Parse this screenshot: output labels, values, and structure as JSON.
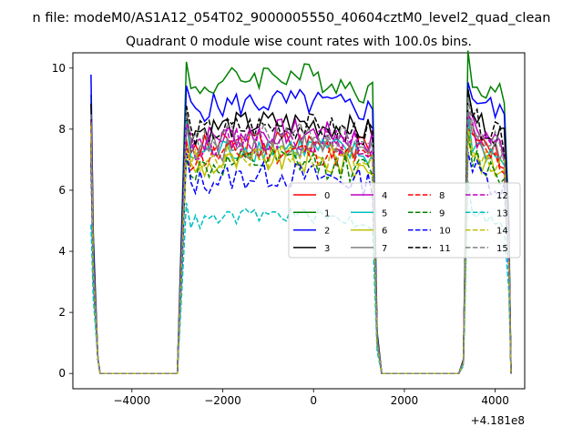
{
  "suptitle": "n file: modeM0/AS1A12_054T02_9000005550_40604cztM0_level2_quad_clean",
  "chart_data": {
    "type": "line",
    "title": "Quadrant 0 module wise count rates with 100.0s bins.",
    "xlabel": "",
    "ylabel": "",
    "x_offset_label": "+4.181e8",
    "xlim": [
      -5300,
      4650
    ],
    "ylim": [
      -0.5,
      10.5
    ],
    "x_ticks": [
      -4000,
      -2000,
      0,
      2000,
      4000
    ],
    "x_tick_labels": [
      "−4000",
      "−2000",
      "0",
      "2000",
      "4000"
    ],
    "y_ticks": [
      0,
      2,
      4,
      6,
      8,
      10
    ],
    "y_tick_labels": [
      "0",
      "2",
      "4",
      "6",
      "8",
      "10"
    ],
    "grid": false,
    "legend_position": "center-right",
    "legend_columns": 4,
    "segments": [
      {
        "x_start": -4900,
        "x_end": -4800,
        "step": 50
      },
      {
        "x_start": -2900,
        "x_end": 1300,
        "step": 100
      },
      {
        "x_start": 3400,
        "x_end": 4300,
        "step": 100
      }
    ],
    "zero_ranges": [
      [
        -4700,
        -3000
      ],
      [
        1500,
        3200
      ]
    ],
    "series": [
      {
        "name": "0",
        "color": "#ff0000",
        "dash": "solid",
        "level": 7.3
      },
      {
        "name": "1",
        "color": "#008000",
        "dash": "solid",
        "level": 9.2
      },
      {
        "name": "2",
        "color": "#0000ff",
        "dash": "solid",
        "level": 8.6
      },
      {
        "name": "3",
        "color": "#000000",
        "dash": "solid",
        "level": 7.9
      },
      {
        "name": "4",
        "color": "#bf00bf",
        "dash": "solid",
        "level": 7.6
      },
      {
        "name": "5",
        "color": "#00bfbf",
        "dash": "solid",
        "level": 7.1
      },
      {
        "name": "6",
        "color": "#bfbf00",
        "dash": "solid",
        "level": 6.7
      },
      {
        "name": "7",
        "color": "#808080",
        "dash": "solid",
        "level": 7.2
      },
      {
        "name": "8",
        "color": "#ff0000",
        "dash": "dashed",
        "level": 7.0
      },
      {
        "name": "9",
        "color": "#008000",
        "dash": "dashed",
        "level": 6.6
      },
      {
        "name": "10",
        "color": "#0000ff",
        "dash": "dashed",
        "level": 6.2
      },
      {
        "name": "11",
        "color": "#000000",
        "dash": "dashed",
        "level": 7.8
      },
      {
        "name": "12",
        "color": "#bf00bf",
        "dash": "dashed",
        "level": 7.4
      },
      {
        "name": "13",
        "color": "#00bfbf",
        "dash": "dashed",
        "level": 4.9
      },
      {
        "name": "14",
        "color": "#bfbf00",
        "dash": "dashed",
        "level": 6.9
      },
      {
        "name": "15",
        "color": "#808080",
        "dash": "dashed",
        "level": 7.5
      }
    ]
  }
}
